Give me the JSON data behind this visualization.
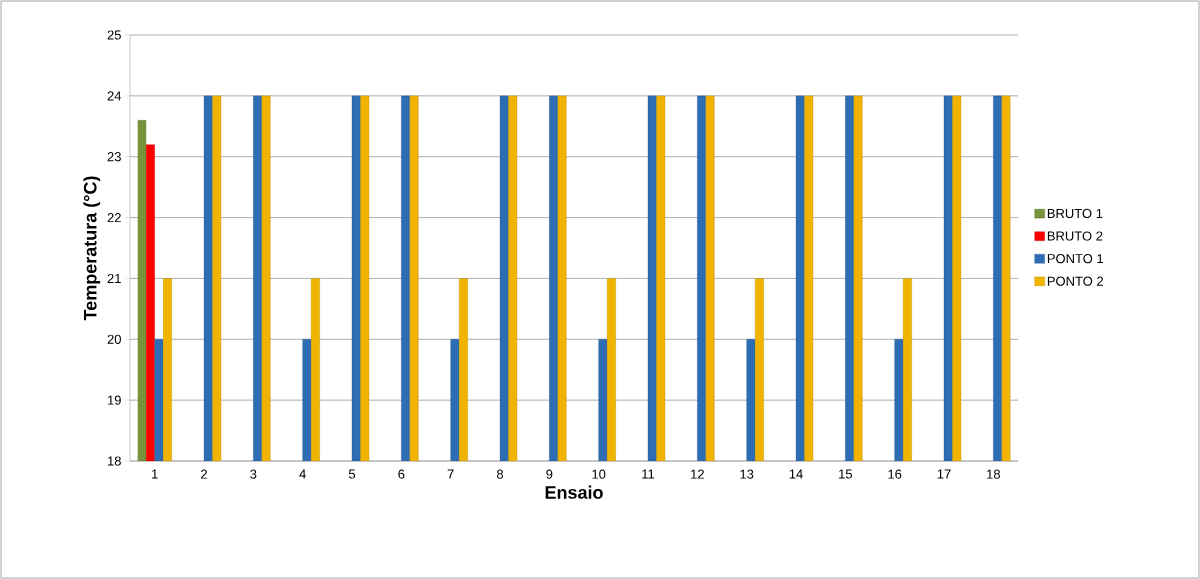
{
  "chart_data": {
    "type": "bar",
    "xlabel": "Ensaio",
    "ylabel": "Temperatura (°C)",
    "categories": [
      "1",
      "2",
      "3",
      "4",
      "5",
      "6",
      "7",
      "8",
      "9",
      "10",
      "11",
      "12",
      "13",
      "14",
      "15",
      "16",
      "17",
      "18"
    ],
    "series": [
      {
        "name": "BRUTO 1",
        "color": "#77933c",
        "values": [
          23.6,
          null,
          null,
          null,
          null,
          null,
          null,
          null,
          null,
          null,
          null,
          null,
          null,
          null,
          null,
          null,
          null,
          null
        ]
      },
      {
        "name": "BRUTO 2",
        "color": "#ff0000",
        "values": [
          23.2,
          null,
          null,
          null,
          null,
          null,
          null,
          null,
          null,
          null,
          null,
          null,
          null,
          null,
          null,
          null,
          null,
          null
        ]
      },
      {
        "name": "PONTO 1",
        "color": "#2e6db4",
        "values": [
          20,
          24,
          24,
          20,
          24,
          24,
          20,
          24,
          24,
          20,
          24,
          24,
          20,
          24,
          24,
          20,
          24,
          24
        ]
      },
      {
        "name": "PONTO 2",
        "color": "#f0b400",
        "values": [
          21,
          24,
          24,
          21,
          24,
          24,
          21,
          24,
          24,
          21,
          24,
          24,
          21,
          24,
          24,
          21,
          24,
          24
        ]
      }
    ],
    "ylim": [
      18,
      25
    ],
    "yticks": [
      18,
      19,
      20,
      21,
      22,
      23,
      24,
      25
    ],
    "grid": "y",
    "legend": "right"
  }
}
